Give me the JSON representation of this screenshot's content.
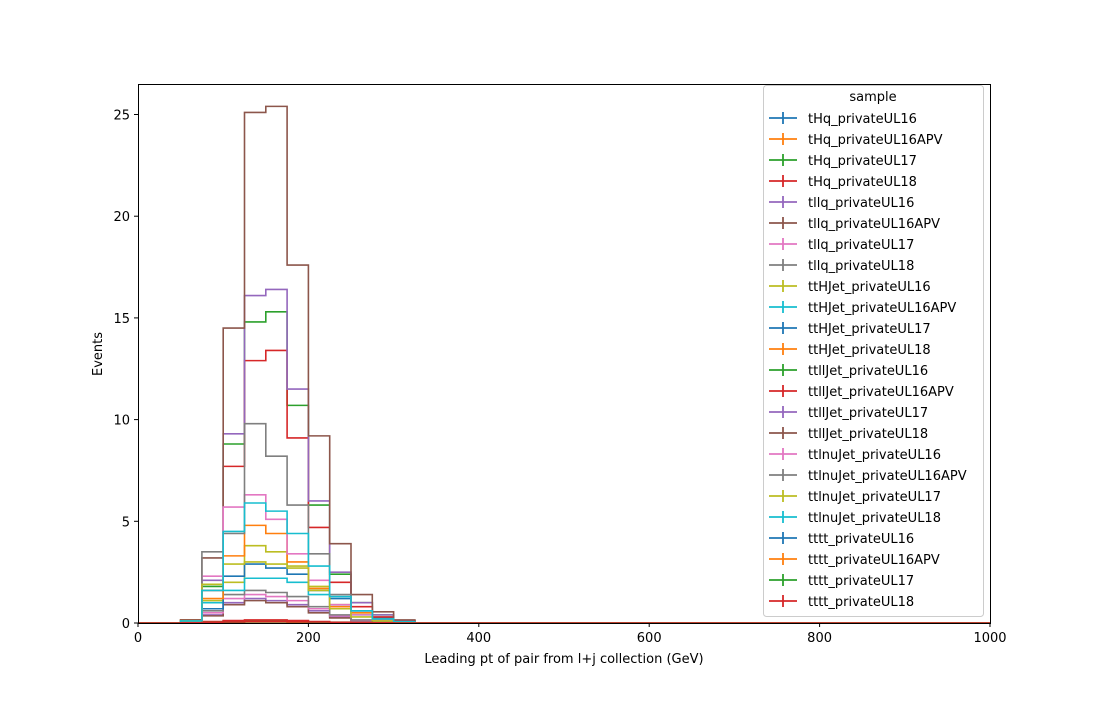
{
  "chart_data": {
    "type": "line",
    "xlabel": "Leading pt of pair from l+j collection (GeV)",
    "ylabel": "Events",
    "xlim": [
      0,
      1000
    ],
    "ylim": [
      0,
      26.5
    ],
    "xticks": [
      "0",
      "200",
      "400",
      "600",
      "800",
      "1000"
    ],
    "yticks": [
      "0",
      "5",
      "10",
      "15",
      "20",
      "25"
    ],
    "bin_edges": [
      0,
      25,
      50,
      75,
      100,
      125,
      150,
      175,
      200,
      225,
      250,
      275,
      300,
      325,
      350,
      375,
      400,
      1000
    ],
    "legend": {
      "title": "sample",
      "position": "top-right"
    },
    "grid": false,
    "series": [
      {
        "name": "tHq_privateUL16",
        "color": "#1f77b4",
        "values": [
          0,
          0,
          0.02,
          0.05,
          0.08,
          0.1,
          0.1,
          0.08,
          0.05,
          0.03,
          0.01,
          0,
          0,
          0,
          0,
          0,
          0
        ]
      },
      {
        "name": "tHq_privateUL16APV",
        "color": "#ff7f0e",
        "values": [
          0,
          0,
          0.02,
          0.05,
          0.07,
          0.09,
          0.09,
          0.07,
          0.05,
          0.02,
          0.01,
          0,
          0,
          0,
          0,
          0,
          0
        ]
      },
      {
        "name": "tHq_privateUL17",
        "color": "#2ca02c",
        "values": [
          0,
          0,
          0.03,
          0.06,
          0.1,
          0.12,
          0.12,
          0.1,
          0.06,
          0.03,
          0.01,
          0,
          0,
          0,
          0,
          0,
          0
        ]
      },
      {
        "name": "tHq_privateUL18",
        "color": "#d62728",
        "values": [
          0,
          0,
          0.03,
          0.07,
          0.12,
          0.15,
          0.15,
          0.12,
          0.07,
          0.04,
          0.01,
          0,
          0,
          0,
          0,
          0,
          0
        ]
      },
      {
        "name": "tllq_privateUL16",
        "color": "#9467bd",
        "values": [
          0,
          0,
          0.05,
          0.4,
          1.0,
          1.2,
          1.1,
          0.9,
          0.6,
          0.3,
          0.1,
          0.03,
          0,
          0,
          0,
          0,
          0
        ]
      },
      {
        "name": "tllq_privateUL16APV",
        "color": "#8c564b",
        "values": [
          0,
          0,
          0.05,
          0.35,
          0.9,
          1.1,
          1.0,
          0.8,
          0.5,
          0.25,
          0.1,
          0.02,
          0,
          0,
          0,
          0,
          0
        ]
      },
      {
        "name": "tllq_privateUL17",
        "color": "#e377c2",
        "values": [
          0,
          0,
          0.06,
          0.5,
          1.2,
          1.4,
          1.3,
          1.1,
          0.7,
          0.35,
          0.12,
          0.03,
          0,
          0,
          0,
          0,
          0
        ]
      },
      {
        "name": "tllq_privateUL18",
        "color": "#7f7f7f",
        "values": [
          0,
          0,
          0.08,
          0.6,
          1.4,
          1.6,
          1.5,
          1.3,
          0.8,
          0.4,
          0.15,
          0.04,
          0,
          0,
          0,
          0,
          0
        ]
      },
      {
        "name": "ttHJet_privateUL16",
        "color": "#bcbd22",
        "values": [
          0,
          0,
          0.1,
          1.1,
          2.0,
          3.8,
          3.5,
          2.8,
          1.8,
          0.9,
          0.5,
          0.2,
          0.05,
          0,
          0,
          0,
          0
        ]
      },
      {
        "name": "ttHJet_privateUL16APV",
        "color": "#17becf",
        "values": [
          0,
          0,
          0.1,
          1.0,
          1.6,
          2.2,
          2.2,
          2.0,
          1.4,
          0.8,
          0.4,
          0.15,
          0.05,
          0,
          0,
          0,
          0
        ]
      },
      {
        "name": "ttHJet_privateUL17",
        "color": "#1f77b4",
        "values": [
          0,
          0,
          0.12,
          0.7,
          2.3,
          2.9,
          2.7,
          2.4,
          1.6,
          1.2,
          0.6,
          0.25,
          0.06,
          0,
          0,
          0,
          0
        ]
      },
      {
        "name": "ttHJet_privateUL18",
        "color": "#ff7f0e",
        "values": [
          0,
          0,
          0.15,
          1.2,
          3.3,
          4.8,
          4.4,
          3.0,
          1.7,
          0.8,
          0.5,
          0.2,
          0.06,
          0,
          0,
          0,
          0
        ]
      },
      {
        "name": "ttllJet_privateUL16",
        "color": "#2ca02c",
        "values": [
          0,
          0,
          0.1,
          1.8,
          8.8,
          14.8,
          15.3,
          10.7,
          5.8,
          2.4,
          1.0,
          0.4,
          0.1,
          0,
          0,
          0,
          0
        ]
      },
      {
        "name": "ttllJet_privateUL16APV",
        "color": "#d62728",
        "values": [
          0,
          0,
          0.1,
          1.6,
          7.7,
          12.9,
          13.4,
          9.1,
          4.7,
          2.0,
          0.8,
          0.3,
          0.1,
          0,
          0,
          0,
          0
        ]
      },
      {
        "name": "ttllJet_privateUL17",
        "color": "#9467bd",
        "values": [
          0,
          0,
          0.1,
          2.1,
          9.3,
          16.1,
          16.4,
          11.5,
          6.0,
          2.5,
          1.0,
          0.4,
          0.1,
          0,
          0,
          0,
          0
        ]
      },
      {
        "name": "ttllJet_privateUL18",
        "color": "#8c564b",
        "values": [
          0,
          0,
          0.15,
          3.2,
          14.5,
          25.1,
          25.4,
          17.6,
          9.2,
          3.9,
          1.4,
          0.55,
          0.15,
          0,
          0,
          0,
          0
        ]
      },
      {
        "name": "ttlnuJet_privateUL16",
        "color": "#e377c2",
        "values": [
          0,
          0,
          0.1,
          2.3,
          5.7,
          6.3,
          5.1,
          3.4,
          2.1,
          0.9,
          0.4,
          0.15,
          0.05,
          0,
          0,
          0,
          0
        ]
      },
      {
        "name": "ttlnuJet_privateUL16APV",
        "color": "#7f7f7f",
        "values": [
          0,
          0,
          0.1,
          3.5,
          4.4,
          9.8,
          8.2,
          5.8,
          3.4,
          1.4,
          0.6,
          0.2,
          0.06,
          0,
          0,
          0,
          0
        ]
      },
      {
        "name": "ttlnuJet_privateUL17",
        "color": "#bcbd22",
        "values": [
          0,
          0,
          0.1,
          1.9,
          2.9,
          3.0,
          2.9,
          2.7,
          1.6,
          0.7,
          0.3,
          0.1,
          0.03,
          0,
          0,
          0,
          0
        ]
      },
      {
        "name": "ttlnuJet_privateUL18",
        "color": "#17becf",
        "values": [
          0,
          0,
          0.1,
          1.6,
          4.5,
          5.9,
          5.5,
          4.4,
          2.8,
          1.3,
          0.6,
          0.2,
          0.06,
          0,
          0,
          0,
          0
        ]
      },
      {
        "name": "tttt_privateUL16",
        "color": "#1f77b4",
        "values": [
          0,
          0,
          0.01,
          0.02,
          0.04,
          0.06,
          0.06,
          0.05,
          0.04,
          0.03,
          0.02,
          0.01,
          0,
          0,
          0,
          0,
          0
        ]
      },
      {
        "name": "tttt_privateUL16APV",
        "color": "#ff7f0e",
        "values": [
          0,
          0,
          0.01,
          0.02,
          0.03,
          0.05,
          0.05,
          0.04,
          0.03,
          0.02,
          0.01,
          0.01,
          0,
          0,
          0,
          0,
          0
        ]
      },
      {
        "name": "tttt_privateUL17",
        "color": "#2ca02c",
        "values": [
          0,
          0,
          0.01,
          0.02,
          0.04,
          0.06,
          0.06,
          0.05,
          0.04,
          0.03,
          0.02,
          0.01,
          0,
          0,
          0,
          0,
          0
        ]
      },
      {
        "name": "tttt_privateUL18",
        "color": "#d62728",
        "values": [
          0,
          0,
          0.01,
          0.02,
          0.05,
          0.07,
          0.07,
          0.06,
          0.05,
          0.03,
          0.02,
          0.01,
          0,
          0,
          0,
          0,
          0
        ]
      }
    ]
  }
}
